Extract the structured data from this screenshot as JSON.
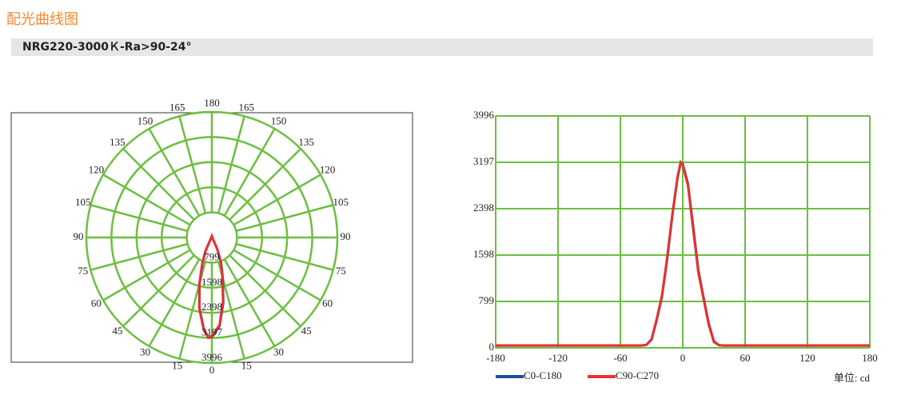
{
  "header": {
    "title": "配光曲线图",
    "subtitle": "NRG220-3000Ｋ-Ra>90-24°"
  },
  "chart_data": [
    {
      "type": "polar",
      "rlim": [
        0,
        3996
      ],
      "rticks": [
        799,
        1598,
        2398,
        3197,
        3996
      ],
      "angle_ticks": [
        0,
        15,
        30,
        45,
        60,
        75,
        90,
        105,
        120,
        135,
        150,
        165,
        180
      ],
      "x": [
        -180,
        -40,
        -35,
        -30,
        -25,
        -20,
        -15,
        -10,
        -5,
        -2,
        0,
        5,
        10,
        15,
        20,
        25,
        30,
        35,
        40,
        180
      ],
      "series": [
        {
          "name": "C0-C180",
          "color": "#1f4e9e",
          "values": [
            40,
            40,
            50,
            140,
            480,
            880,
            1520,
            2280,
            2930,
            3180,
            3170,
            2830,
            2100,
            1340,
            870,
            420,
            110,
            45,
            40,
            40
          ]
        },
        {
          "name": "C90-C270",
          "color": "#e8312f",
          "values": [
            40,
            40,
            50,
            150,
            500,
            900,
            1550,
            2300,
            2950,
            3197,
            3150,
            2800,
            2050,
            1300,
            850,
            400,
            100,
            45,
            40,
            40
          ]
        }
      ]
    },
    {
      "type": "line",
      "xlim": [
        -180,
        180
      ],
      "xticks": [
        -180,
        -120,
        -60,
        0,
        60,
        120,
        180
      ],
      "ylim": [
        0,
        3996
      ],
      "yticks": [
        0,
        799,
        1598,
        2398,
        3197,
        3996
      ],
      "grid": true,
      "x": [
        -180,
        -40,
        -35,
        -30,
        -25,
        -20,
        -15,
        -10,
        -5,
        -2,
        0,
        5,
        10,
        15,
        20,
        25,
        30,
        35,
        40,
        180
      ],
      "series": [
        {
          "name": "C0-C180",
          "color": "#1f4e9e",
          "values": [
            40,
            40,
            50,
            140,
            480,
            880,
            1520,
            2280,
            2930,
            3180,
            3170,
            2830,
            2100,
            1340,
            870,
            420,
            110,
            45,
            40,
            40
          ]
        },
        {
          "name": "C90-C270",
          "color": "#e8312f",
          "values": [
            40,
            40,
            50,
            150,
            500,
            900,
            1550,
            2300,
            2950,
            3197,
            3150,
            2800,
            2050,
            1300,
            850,
            400,
            100,
            45,
            40,
            40
          ]
        }
      ],
      "unit_note": "单位: cd"
    }
  ]
}
